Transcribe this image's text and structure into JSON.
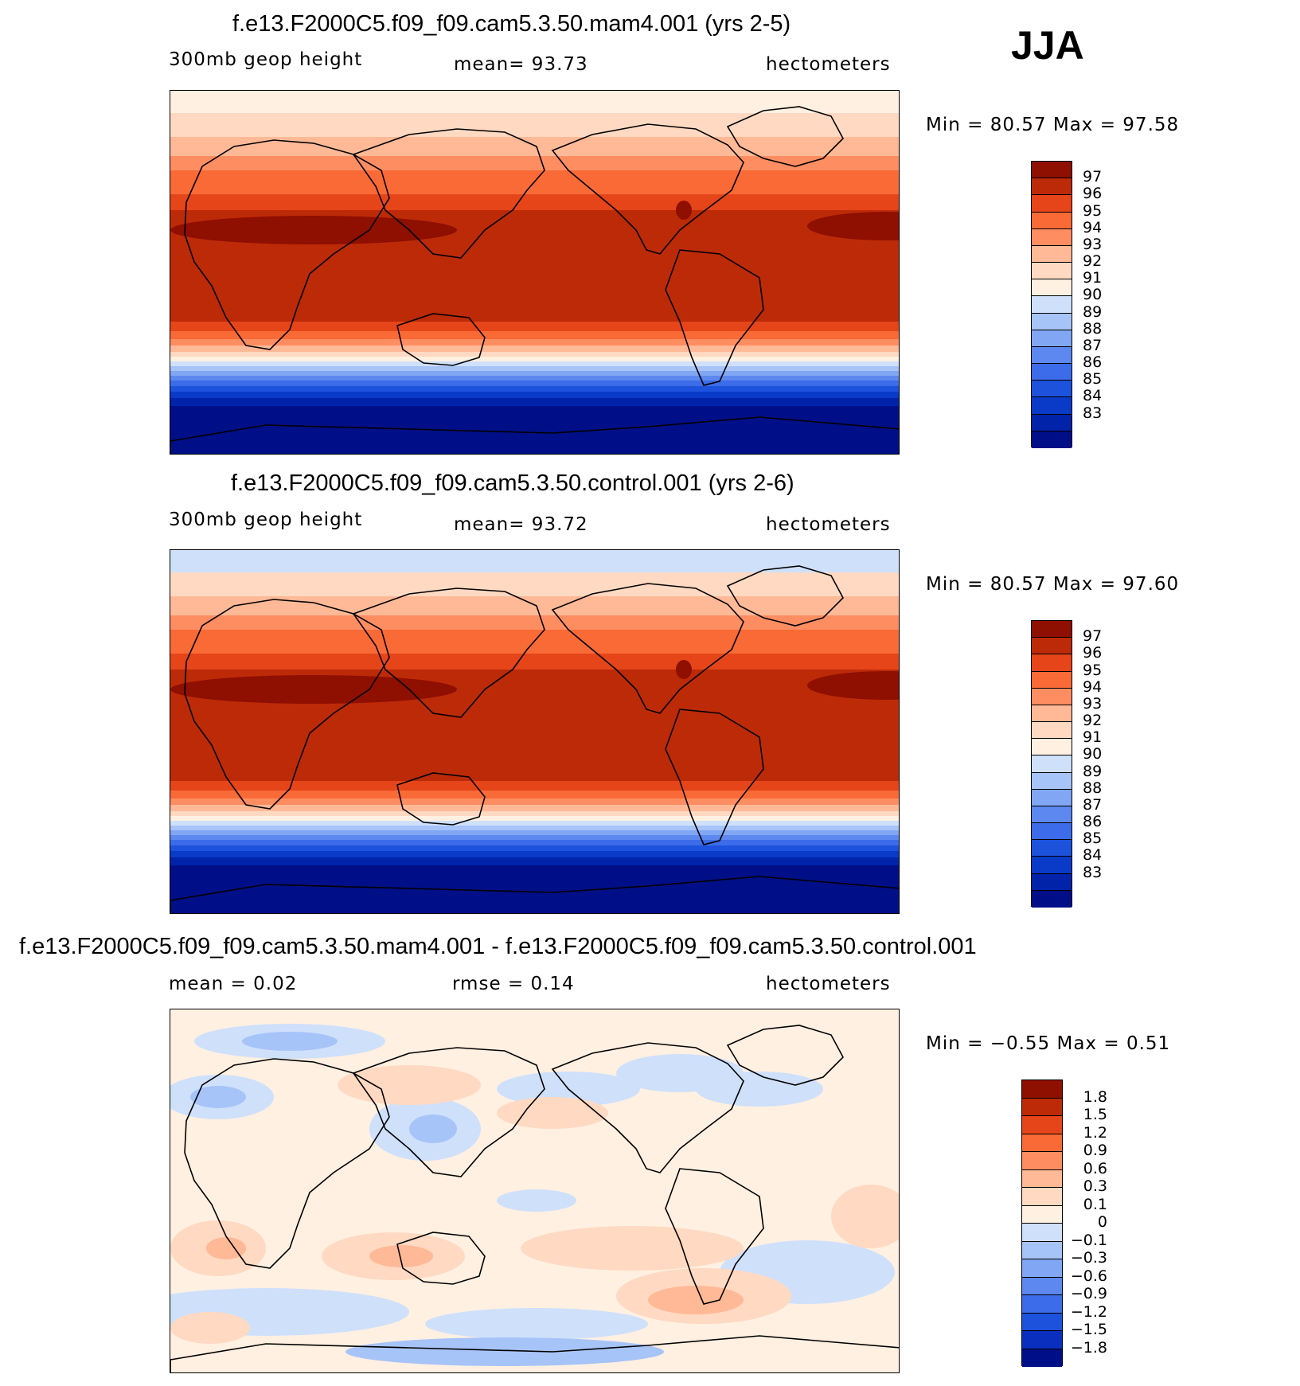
{
  "season": "JJA",
  "colors": {
    "abs": [
      "#000f87",
      "#0023a9",
      "#0a3ac8",
      "#1d52dd",
      "#3c6ce9",
      "#5c88ef",
      "#80a6f4",
      "#a7c4f8",
      "#cfe0fb",
      "#fff0e1",
      "#ffd9c2",
      "#ffb996",
      "#ff8d62",
      "#f96a36",
      "#e6451a",
      "#bd2a08",
      "#8f0f00"
    ],
    "diff": [
      "#000f87",
      "#0a2fbf",
      "#1d52dd",
      "#3c6ce9",
      "#5c88ef",
      "#80a6f4",
      "#a7c4f8",
      "#cfe0fb",
      "#fff0e1",
      "#ffd9c2",
      "#ffb996",
      "#ff8d62",
      "#f96a36",
      "#e6451a",
      "#bd2a08",
      "#8f0f00"
    ]
  },
  "panels": [
    {
      "title": "f.e13.F2000C5.f09_f09.cam5.3.50.mam4.001 (yrs 2-5)",
      "left": "300mb geop height",
      "middle": "mean=   93.73",
      "right": "hectometers",
      "minmax": "Min =   80.57 Max =   97.58",
      "ticks": [
        "97",
        "96",
        "95",
        "94",
        "93",
        "92",
        "91",
        "90",
        "89",
        "88",
        "87",
        "86",
        "85",
        "84",
        "83"
      ],
      "kind": "abs",
      "variant": "a"
    },
    {
      "title": "f.e13.F2000C5.f09_f09.cam5.3.50.control.001 (yrs 2-6)",
      "left": "300mb geop height",
      "middle": "mean=   93.72",
      "right": "hectometers",
      "minmax": "Min =   80.57 Max =   97.60",
      "ticks": [
        "97",
        "96",
        "95",
        "94",
        "93",
        "92",
        "91",
        "90",
        "89",
        "88",
        "87",
        "86",
        "85",
        "84",
        "83"
      ],
      "kind": "abs",
      "variant": "b"
    },
    {
      "title": "f.e13.F2000C5.f09_f09.cam5.3.50.mam4.001 - f.e13.F2000C5.f09_f09.cam5.3.50.control.001",
      "left": "mean =    0.02",
      "middle": "rmse =    0.14",
      "right": "hectometers",
      "minmax": "Min =  −0.55 Max =    0.51",
      "ticks": [
        "1.8",
        "1.5",
        "1.2",
        "0.9",
        "0.6",
        "0.3",
        "0.1",
        "0",
        "−0.1",
        "−0.3",
        "−0.6",
        "−0.9",
        "−1.2",
        "−1.5",
        "−1.8"
      ],
      "kind": "diff",
      "variant": "d"
    }
  ]
}
